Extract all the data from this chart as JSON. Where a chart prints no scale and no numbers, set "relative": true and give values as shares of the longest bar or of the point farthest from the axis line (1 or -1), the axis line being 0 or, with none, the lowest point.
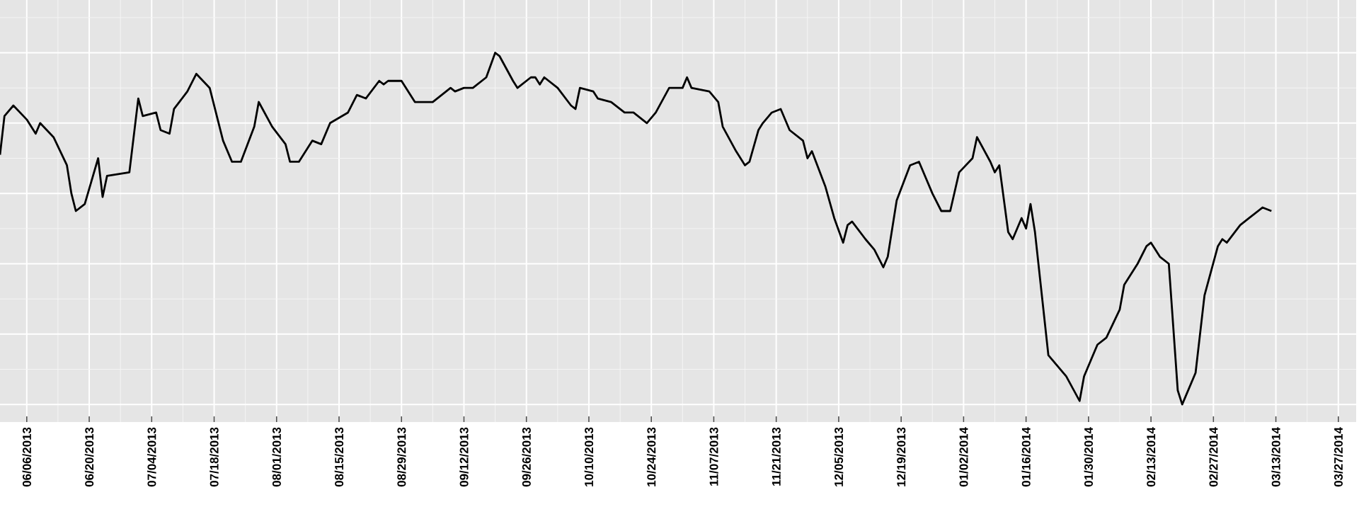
{
  "chart_data": {
    "type": "line",
    "relative": true,
    "grid": true,
    "tick_labels": "x",
    "color": "#000000",
    "xlim": [
      "2013-05-31",
      "2014-03-31"
    ],
    "xticks": [
      {
        "value": "2013-06-06",
        "label": "06/06/2013"
      },
      {
        "value": "2013-06-20",
        "label": "06/20/2013"
      },
      {
        "value": "2013-07-04",
        "label": "07/04/2013"
      },
      {
        "value": "2013-07-18",
        "label": "07/18/2013"
      },
      {
        "value": "2013-08-01",
        "label": "08/01/2013"
      },
      {
        "value": "2013-08-15",
        "label": "08/15/2013"
      },
      {
        "value": "2013-08-29",
        "label": "08/29/2013"
      },
      {
        "value": "2013-09-12",
        "label": "09/12/2013"
      },
      {
        "value": "2013-09-26",
        "label": "09/26/2013"
      },
      {
        "value": "2013-10-10",
        "label": "10/10/2013"
      },
      {
        "value": "2013-10-24",
        "label": "10/24/2013"
      },
      {
        "value": "2013-11-07",
        "label": "11/07/2013"
      },
      {
        "value": "2013-11-21",
        "label": "11/21/2013"
      },
      {
        "value": "2013-12-05",
        "label": "12/05/2013"
      },
      {
        "value": "2013-12-19",
        "label": "12/19/2013"
      },
      {
        "value": "2014-01-02",
        "label": "01/02/2014"
      },
      {
        "value": "2014-01-16",
        "label": "01/16/2014"
      },
      {
        "value": "2014-01-30",
        "label": "01/30/2014"
      },
      {
        "value": "2014-02-13",
        "label": "02/13/2014"
      },
      {
        "value": "2014-02-27",
        "label": "02/27/2014"
      },
      {
        "value": "2014-03-13",
        "label": "03/13/2014"
      },
      {
        "value": "2014-03-27",
        "label": "03/27/2014"
      }
    ],
    "x": [
      "2013-05-31",
      "2013-06-01",
      "2013-06-03",
      "2013-06-06",
      "2013-06-08",
      "2013-06-09",
      "2013-06-12",
      "2013-06-15",
      "2013-06-16",
      "2013-06-17",
      "2013-06-19",
      "2013-06-22",
      "2013-06-23",
      "2013-06-24",
      "2013-06-29",
      "2013-07-01",
      "2013-07-02",
      "2013-07-05",
      "2013-07-06",
      "2013-07-08",
      "2013-07-09",
      "2013-07-12",
      "2013-07-14",
      "2013-07-17",
      "2013-07-20",
      "2013-07-22",
      "2013-07-24",
      "2013-07-27",
      "2013-07-28",
      "2013-07-31",
      "2013-08-03",
      "2013-08-04",
      "2013-08-06",
      "2013-08-09",
      "2013-08-11",
      "2013-08-13",
      "2013-08-17",
      "2013-08-19",
      "2013-08-21",
      "2013-08-24",
      "2013-08-25",
      "2013-08-26",
      "2013-08-29",
      "2013-09-01",
      "2013-09-05",
      "2013-09-09",
      "2013-09-10",
      "2013-09-12",
      "2013-09-14",
      "2013-09-17",
      "2013-09-19",
      "2013-09-20",
      "2013-09-23",
      "2013-09-24",
      "2013-09-27",
      "2013-09-28",
      "2013-09-29",
      "2013-09-30",
      "2013-10-03",
      "2013-10-06",
      "2013-10-07",
      "2013-10-08",
      "2013-10-11",
      "2013-10-12",
      "2013-10-15",
      "2013-10-18",
      "2013-10-20",
      "2013-10-23",
      "2013-10-25",
      "2013-10-28",
      "2013-10-31",
      "2013-11-01",
      "2013-11-02",
      "2013-11-06",
      "2013-11-08",
      "2013-11-09",
      "2013-11-12",
      "2013-11-14",
      "2013-11-15",
      "2013-11-17",
      "2013-11-18",
      "2013-11-20",
      "2013-11-22",
      "2013-11-24",
      "2013-11-27",
      "2013-11-28",
      "2013-11-29",
      "2013-12-02",
      "2013-12-04",
      "2013-12-06",
      "2013-12-07",
      "2013-12-08",
      "2013-12-11",
      "2013-12-13",
      "2013-12-15",
      "2013-12-16",
      "2013-12-18",
      "2013-12-21",
      "2013-12-23",
      "2013-12-26",
      "2013-12-28",
      "2013-12-30",
      "2014-01-01",
      "2014-01-04",
      "2014-01-05",
      "2014-01-08",
      "2014-01-09",
      "2014-01-10",
      "2014-01-12",
      "2014-01-13",
      "2014-01-15",
      "2014-01-16",
      "2014-01-17",
      "2014-01-18",
      "2014-01-21",
      "2014-01-25",
      "2014-01-28",
      "2014-01-29",
      "2014-02-01",
      "2014-02-03",
      "2014-02-06",
      "2014-02-07",
      "2014-02-10",
      "2014-02-12",
      "2014-02-13",
      "2014-02-15",
      "2014-02-17",
      "2014-02-19",
      "2014-02-20",
      "2014-02-23",
      "2014-02-25",
      "2014-02-28",
      "2014-03-01",
      "2014-03-02",
      "2014-03-05",
      "2014-03-07",
      "2014-03-10",
      "2014-03-12"
    ],
    "values": [
      0.71,
      0.82,
      0.85,
      0.81,
      0.77,
      0.8,
      0.76,
      0.68,
      0.6,
      0.55,
      0.57,
      0.7,
      0.59,
      0.65,
      0.66,
      0.87,
      0.82,
      0.83,
      0.78,
      0.77,
      0.84,
      0.89,
      0.94,
      0.9,
      0.75,
      0.69,
      0.69,
      0.79,
      0.86,
      0.79,
      0.74,
      0.69,
      0.69,
      0.75,
      0.74,
      0.8,
      0.83,
      0.88,
      0.87,
      0.92,
      0.91,
      0.92,
      0.92,
      0.86,
      0.86,
      0.9,
      0.89,
      0.9,
      0.9,
      0.93,
      1.0,
      0.99,
      0.92,
      0.9,
      0.93,
      0.93,
      0.91,
      0.93,
      0.9,
      0.85,
      0.84,
      0.9,
      0.89,
      0.87,
      0.86,
      0.83,
      0.83,
      0.8,
      0.83,
      0.9,
      0.9,
      0.93,
      0.9,
      0.89,
      0.86,
      0.79,
      0.72,
      0.68,
      0.69,
      0.78,
      0.8,
      0.83,
      0.84,
      0.78,
      0.75,
      0.7,
      0.72,
      0.62,
      0.53,
      0.46,
      0.51,
      0.52,
      0.47,
      0.44,
      0.39,
      0.42,
      0.58,
      0.68,
      0.69,
      0.6,
      0.55,
      0.55,
      0.66,
      0.7,
      0.76,
      0.69,
      0.66,
      0.68,
      0.49,
      0.47,
      0.53,
      0.5,
      0.57,
      0.49,
      0.14,
      0.08,
      0.01,
      0.08,
      0.17,
      0.19,
      0.27,
      0.34,
      0.4,
      0.45,
      0.46,
      0.42,
      0.4,
      0.04,
      0.0,
      0.09,
      0.31,
      0.45,
      0.47,
      0.46,
      0.51,
      0.53,
      0.56,
      0.55
    ]
  }
}
